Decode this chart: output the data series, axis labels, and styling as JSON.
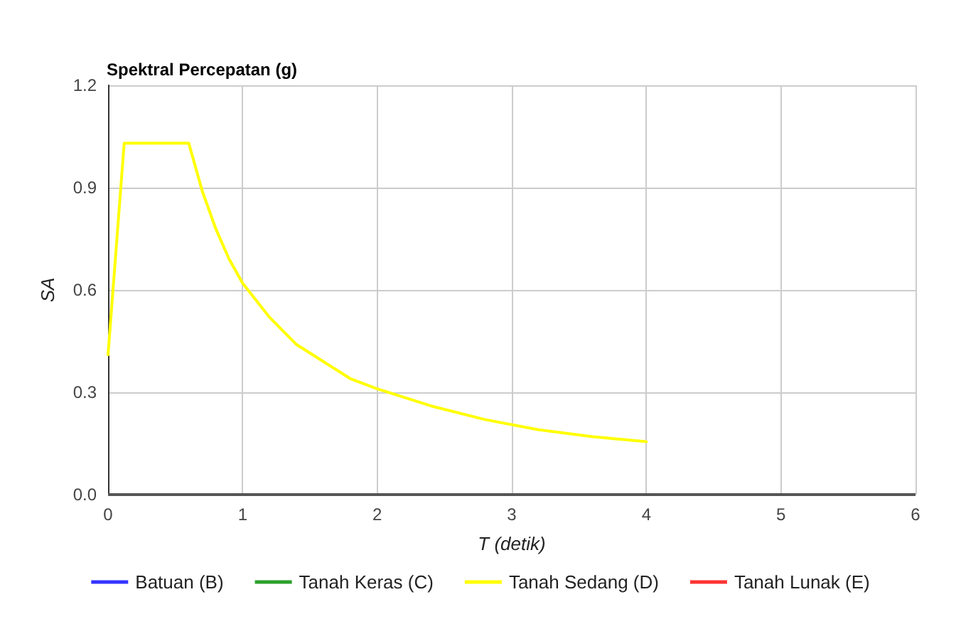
{
  "chart_data": {
    "type": "line",
    "title": "Spektral Percepatan (g)",
    "xlabel": "T (detik)",
    "ylabel": "SA",
    "xlim": [
      0,
      6
    ],
    "xticks": [
      0,
      1,
      2,
      3,
      4,
      5,
      6
    ],
    "ylim": [
      0,
      1.2
    ],
    "yticks": [
      {
        "value": 0,
        "label": "0.0"
      },
      0.3,
      0.6,
      0.9,
      1.2
    ],
    "grid": true,
    "legend": "bottom",
    "marker": "none",
    "line_style": "solid",
    "series": [
      {
        "name": "Batuan (B)",
        "color": "#3333ff"
      },
      {
        "name": "Tanah Keras (C)",
        "color": "#2ca02c"
      },
      {
        "name": "Tanah Sedang (D)",
        "color": "#ffff00",
        "x": [
          0,
          0.12,
          0.6,
          0.7,
          0.8,
          0.9,
          1.0,
          1.2,
          1.4,
          1.6,
          1.8,
          2.0,
          2.4,
          2.8,
          3.2,
          3.6,
          4.0
        ],
        "values": [
          0.41,
          1.03,
          1.03,
          0.89,
          0.78,
          0.69,
          0.62,
          0.52,
          0.44,
          0.39,
          0.34,
          0.31,
          0.26,
          0.22,
          0.19,
          0.17,
          0.155
        ]
      },
      {
        "name": "Tanah Lunak (E)",
        "color": "#ff3333"
      }
    ]
  }
}
